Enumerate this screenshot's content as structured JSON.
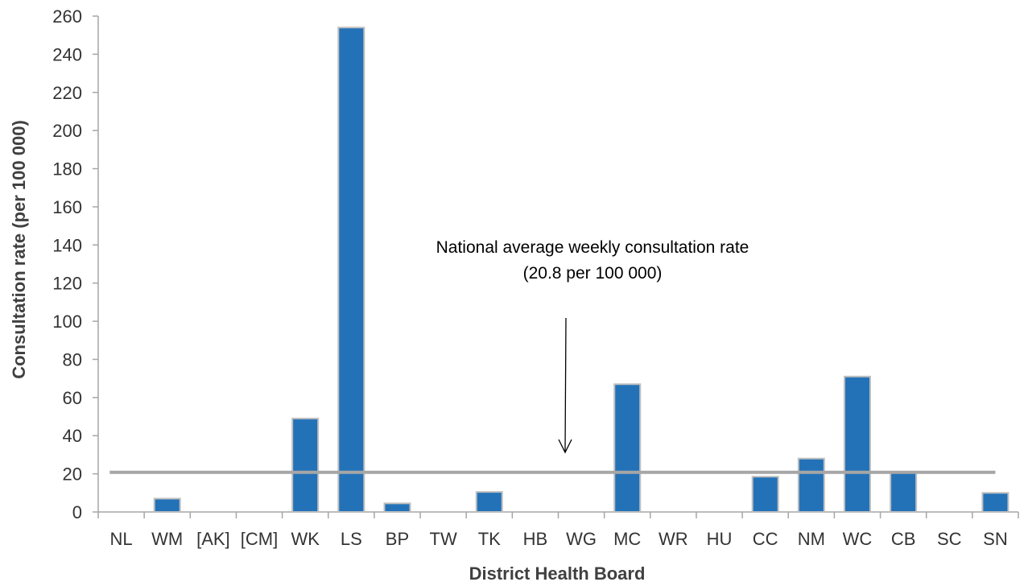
{
  "chart_data": {
    "type": "bar",
    "xlabel": "District Health Board",
    "ylabel": "Consultation rate (per 100 000)",
    "categories": [
      "NL",
      "WM",
      "[AK]",
      "[CM]",
      "WK",
      "LS",
      "BP",
      "TW",
      "TK",
      "HB",
      "WG",
      "MC",
      "WR",
      "HU",
      "CC",
      "NM",
      "WC",
      "CB",
      "SC",
      "SN"
    ],
    "values": [
      0,
      7,
      0,
      0,
      49,
      254,
      4.5,
      0,
      10.5,
      0,
      0,
      67,
      0,
      0,
      18.5,
      28,
      71,
      20.5,
      0,
      10
    ],
    "ylim": [
      0,
      260
    ],
    "yticks": [
      0,
      20,
      40,
      60,
      80,
      100,
      120,
      140,
      160,
      180,
      200,
      220,
      240,
      260
    ],
    "reference_line": {
      "value": 20.8
    },
    "annotation": {
      "line1": "National average weekly consultation rate",
      "line2": "(20.8 per 100 000)"
    },
    "colors": {
      "bar": "#2372b8",
      "bar_border": "#bfbfbf",
      "reference_line": "#a6a6a6",
      "axis": "#a6a6a6"
    },
    "grid": false
  }
}
